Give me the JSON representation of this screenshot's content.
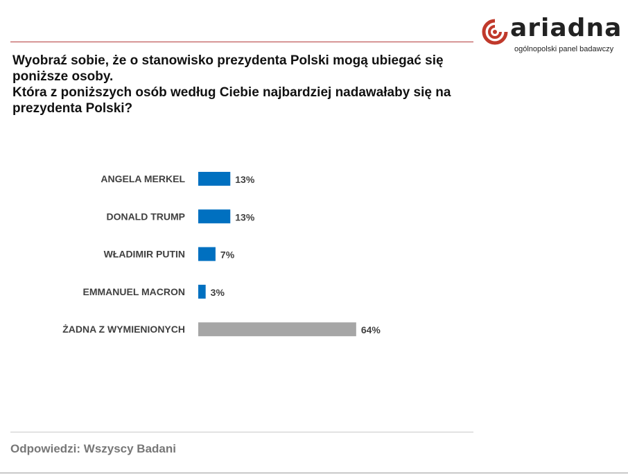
{
  "brand": {
    "name": "ariadna",
    "tagline": "ogólnopolski panel badawczy",
    "color": "#c0392b"
  },
  "question": {
    "lines": [
      "Wyobraź sobie, że o stanowisko prezydenta Polski mogą ubiegać się poniższe osoby.",
      "Która z poniższych osób według Ciebie najbardziej nadawałaby się na prezydenta Polski?"
    ]
  },
  "chart_data": {
    "type": "bar",
    "orientation": "horizontal",
    "categories": [
      "ANGELA MERKEL",
      "DONALD TRUMP",
      "WŁADIMIR PUTIN",
      "EMMANUEL MACRON",
      "ŻADNA Z WYMIENIONYCH"
    ],
    "values": [
      13,
      13,
      7,
      3,
      64
    ],
    "data_labels": [
      "13%",
      "13%",
      "7%",
      "3%",
      "64%"
    ],
    "unit": "%",
    "colors": [
      "#0070c0",
      "#0070c0",
      "#0070c0",
      "#0070c0",
      "#a6a6a6"
    ],
    "grid": false,
    "axes_visible": false
  },
  "footer": {
    "text": "Odpowiedzi: Wszyscy Badani"
  }
}
